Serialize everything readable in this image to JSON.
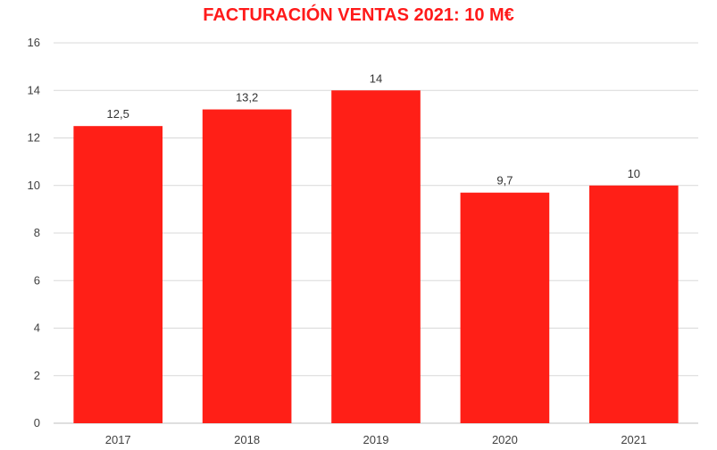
{
  "chart_data": {
    "type": "bar",
    "title": "FACTURACIÓN VENTAS 2021: 10 M€",
    "categories": [
      "2017",
      "2018",
      "2019",
      "2020",
      "2021"
    ],
    "values": [
      12.5,
      13.2,
      14,
      9.7,
      10
    ],
    "data_labels": [
      "12,5",
      "13,2",
      "14",
      "9,7",
      "10"
    ],
    "y_ticks": [
      "0",
      "2",
      "4",
      "6",
      "8",
      "10",
      "12",
      "14",
      "16"
    ],
    "ylim": [
      0,
      16
    ],
    "y_step": 2,
    "grid": true,
    "xlabel": "",
    "ylabel": "",
    "colors": {
      "bar": "#ff1f17",
      "title": "#ff1a1a",
      "grid": "#d9d9d9"
    }
  }
}
